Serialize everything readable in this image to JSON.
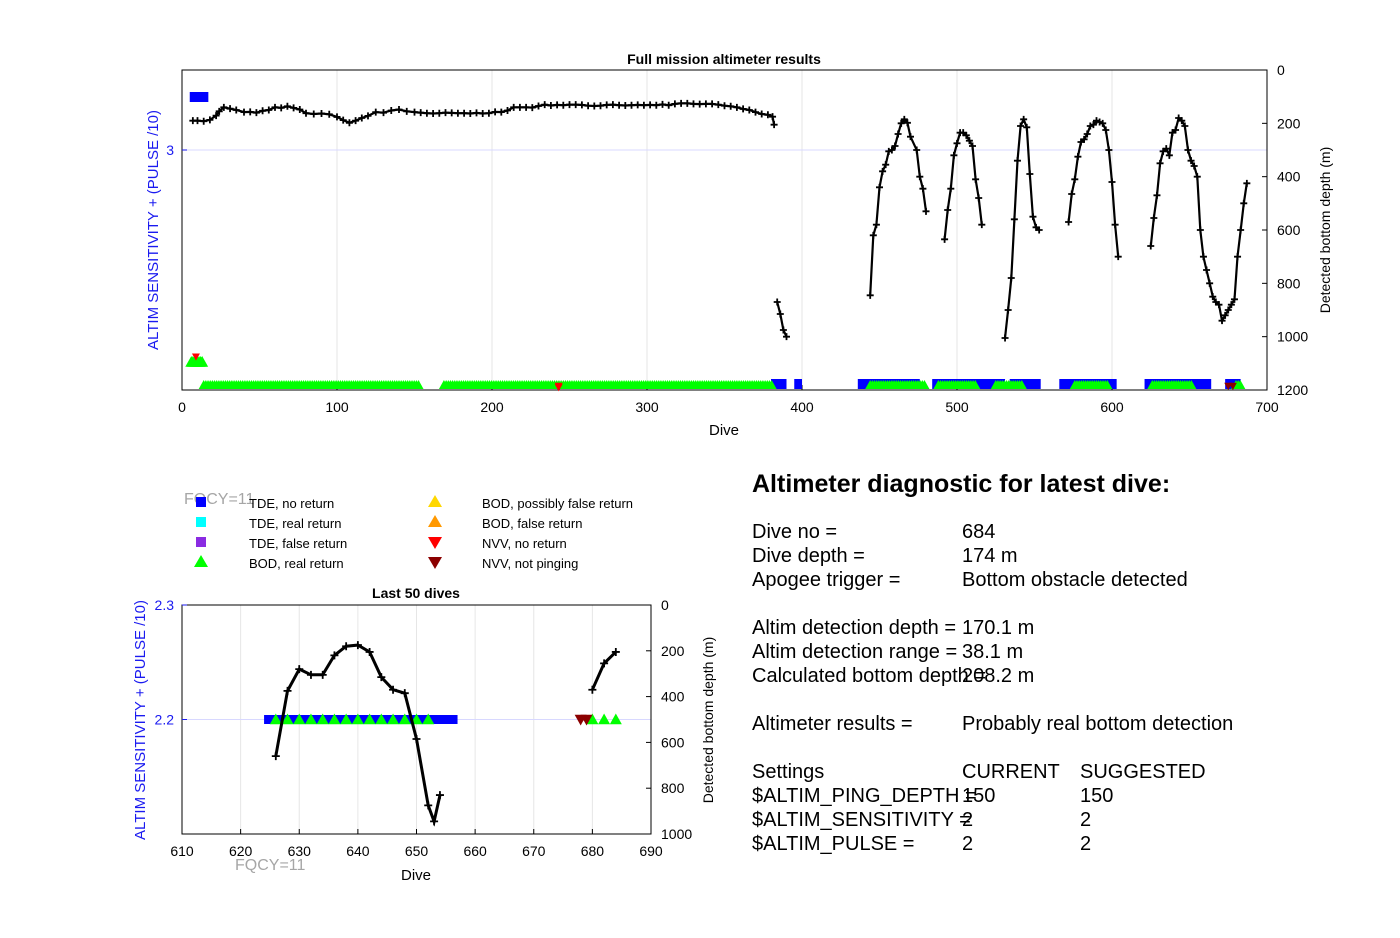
{
  "colors": {
    "left_axis": "#1a1af0",
    "tde_no_return": "#0000ff",
    "tde_real_return": "#00ffff",
    "tde_false_return": "#8a2be2",
    "bod_real_return": "#00ff00",
    "bod_possibly_false": "#ffd700",
    "bod_false": "#ff9900",
    "nvv_no_return": "#ff0000",
    "nvv_not_pinging": "#8b0000",
    "depth_line": "#000000",
    "watermark": "#a6a6a6"
  },
  "chart_data": [
    {
      "id": "full",
      "type": "line",
      "title": "Full mission altimeter results",
      "xlabel": "Dive",
      "ylabel_left": "ALTIM SENSITIVITY + (PULSE /10)",
      "ylabel_right": "Detected bottom depth (m)",
      "xlim": [
        0,
        700
      ],
      "ylim_left": [
        1.8,
        3.4
      ],
      "ylim_right_reversed": [
        0,
        1200
      ],
      "xticks": [
        "0",
        "100",
        "200",
        "300",
        "400",
        "500",
        "600",
        "700"
      ],
      "yticks_left": [
        "3"
      ],
      "yticks_right": [
        "0",
        "200",
        "400",
        "600",
        "800",
        "1000",
        "1200"
      ],
      "grid": true,
      "depth_segments": [
        [
          [
            7,
            190
          ],
          [
            10,
            190
          ],
          [
            14,
            192
          ],
          [
            18,
            187
          ],
          [
            22,
            171
          ],
          [
            24,
            155
          ],
          [
            27,
            140
          ],
          [
            31,
            145
          ],
          [
            35,
            150
          ],
          [
            40,
            158
          ],
          [
            44,
            157
          ],
          [
            48,
            160
          ],
          [
            52,
            153
          ],
          [
            56,
            150
          ],
          [
            60,
            140
          ],
          [
            64,
            142
          ],
          [
            68,
            136
          ],
          [
            72,
            142
          ],
          [
            76,
            148
          ],
          [
            80,
            162
          ],
          [
            85,
            165
          ],
          [
            90,
            163
          ],
          [
            95,
            166
          ],
          [
            100,
            176
          ],
          [
            104,
            188
          ],
          [
            108,
            198
          ],
          [
            112,
            190
          ],
          [
            116,
            180
          ],
          [
            120,
            172
          ],
          [
            125,
            158
          ],
          [
            130,
            160
          ],
          [
            135,
            152
          ],
          [
            140,
            148
          ],
          [
            145,
            155
          ],
          [
            150,
            158
          ],
          [
            154,
            160
          ],
          [
            158,
            162
          ],
          [
            162,
            163
          ],
          [
            166,
            162
          ],
          [
            170,
            160
          ],
          [
            174,
            161
          ],
          [
            178,
            162
          ],
          [
            182,
            162
          ],
          [
            186,
            163
          ],
          [
            190,
            161
          ],
          [
            194,
            163
          ],
          [
            198,
            162
          ],
          [
            202,
            157
          ],
          [
            206,
            158
          ],
          [
            210,
            152
          ],
          [
            214,
            140
          ],
          [
            218,
            140
          ],
          [
            222,
            140
          ],
          [
            226,
            141
          ],
          [
            230,
            135
          ],
          [
            234,
            130
          ],
          [
            238,
            133
          ],
          [
            242,
            131
          ],
          [
            246,
            132
          ],
          [
            250,
            130
          ],
          [
            254,
            130
          ],
          [
            258,
            131
          ],
          [
            262,
            134
          ],
          [
            266,
            135
          ],
          [
            270,
            134
          ],
          [
            274,
            131
          ],
          [
            278,
            130
          ],
          [
            282,
            132
          ],
          [
            286,
            133
          ],
          [
            290,
            132
          ],
          [
            294,
            131
          ],
          [
            298,
            132
          ],
          [
            302,
            131
          ],
          [
            306,
            132
          ],
          [
            310,
            129
          ],
          [
            314,
            132
          ],
          [
            318,
            127
          ],
          [
            322,
            125
          ],
          [
            326,
            125
          ],
          [
            330,
            127
          ],
          [
            334,
            128
          ],
          [
            338,
            127
          ],
          [
            342,
            127
          ],
          [
            346,
            130
          ],
          [
            350,
            134
          ],
          [
            354,
            136
          ],
          [
            358,
            140
          ],
          [
            362,
            146
          ],
          [
            366,
            150
          ],
          [
            370,
            158
          ],
          [
            374,
            165
          ],
          [
            378,
            168
          ],
          [
            381,
            175
          ],
          [
            382,
            205
          ]
        ],
        [
          [
            384,
            870
          ],
          [
            386,
            915
          ],
          [
            388,
            975
          ],
          [
            390,
            1000
          ]
        ],
        [
          [
            444,
            845
          ],
          [
            446,
            620
          ],
          [
            448,
            580
          ],
          [
            450,
            440
          ],
          [
            452,
            380
          ],
          [
            454,
            355
          ],
          [
            456,
            305
          ],
          [
            458,
            300
          ],
          [
            460,
            285
          ],
          [
            462,
            240
          ],
          [
            464,
            200
          ],
          [
            466,
            185
          ],
          [
            468,
            198
          ],
          [
            470,
            250
          ],
          [
            474,
            300
          ],
          [
            476,
            400
          ],
          [
            478,
            445
          ],
          [
            480,
            530
          ]
        ],
        [
          [
            492,
            635
          ],
          [
            494,
            525
          ],
          [
            496,
            445
          ],
          [
            498,
            320
          ],
          [
            500,
            275
          ],
          [
            502,
            235
          ],
          [
            504,
            235
          ],
          [
            506,
            245
          ],
          [
            508,
            265
          ],
          [
            510,
            285
          ],
          [
            512,
            410
          ],
          [
            514,
            480
          ],
          [
            516,
            580
          ]
        ],
        [
          [
            531,
            1005
          ],
          [
            533,
            900
          ],
          [
            535,
            780
          ],
          [
            537,
            560
          ],
          [
            539,
            340
          ],
          [
            541,
            210
          ],
          [
            543,
            185
          ],
          [
            545,
            215
          ],
          [
            547,
            390
          ],
          [
            549,
            550
          ],
          [
            551,
            590
          ],
          [
            553,
            600
          ]
        ],
        [
          [
            572,
            570
          ],
          [
            574,
            465
          ],
          [
            576,
            410
          ],
          [
            578,
            325
          ],
          [
            580,
            270
          ],
          [
            582,
            260
          ],
          [
            584,
            240
          ],
          [
            586,
            210
          ],
          [
            588,
            205
          ],
          [
            590,
            190
          ],
          [
            592,
            195
          ],
          [
            594,
            200
          ],
          [
            596,
            225
          ],
          [
            598,
            300
          ],
          [
            600,
            420
          ],
          [
            602,
            580
          ],
          [
            604,
            700
          ]
        ],
        [
          [
            625,
            660
          ],
          [
            627,
            555
          ],
          [
            629,
            470
          ],
          [
            631,
            350
          ],
          [
            633,
            305
          ],
          [
            635,
            295
          ],
          [
            637,
            320
          ],
          [
            639,
            235
          ],
          [
            641,
            225
          ],
          [
            643,
            180
          ],
          [
            645,
            190
          ],
          [
            647,
            210
          ],
          [
            649,
            300
          ],
          [
            651,
            340
          ],
          [
            653,
            360
          ],
          [
            655,
            400
          ],
          [
            657,
            600
          ],
          [
            659,
            700
          ],
          [
            661,
            750
          ],
          [
            663,
            800
          ],
          [
            665,
            850
          ],
          [
            667,
            870
          ],
          [
            669,
            880
          ],
          [
            671,
            940
          ],
          [
            673,
            920
          ],
          [
            675,
            900
          ],
          [
            677,
            880
          ],
          [
            679,
            860
          ],
          [
            681,
            700
          ],
          [
            683,
            600
          ],
          [
            685,
            500
          ],
          [
            687,
            425
          ]
        ]
      ],
      "tde_no_return_bars": [
        [
          5,
          17
        ],
        [
          380,
          390
        ],
        [
          395,
          400
        ],
        [
          436,
          476
        ],
        [
          484,
          531
        ],
        [
          534,
          554
        ],
        [
          566,
          603
        ],
        [
          621,
          664
        ],
        [
          673,
          683
        ]
      ],
      "bod_real_return_bars": [
        [
          14,
          153
        ],
        [
          169,
          381
        ],
        [
          444,
          480
        ],
        [
          488,
          513
        ],
        [
          525,
          543
        ],
        [
          576,
          598
        ],
        [
          626,
          652
        ],
        [
          680,
          683
        ]
      ],
      "bod_real_return_early": [
        [
          6,
          13
        ]
      ],
      "nvv_no_return_markers": [
        [
          9,
          1090
        ],
        [
          243,
          1205
        ],
        [
          243,
          1200
        ]
      ],
      "nvv_not_pinging_markers": [
        [
          675,
          1200
        ],
        [
          678,
          1200
        ]
      ]
    },
    {
      "id": "last50",
      "type": "line",
      "title": "Last 50 dives",
      "xlabel": "Dive",
      "ylabel_left": "ALTIM SENSITIVITY + (PULSE /10)",
      "ylabel_right": "Detected bottom depth (m)",
      "xlim": [
        610,
        690
      ],
      "ylim_left": [
        2.1,
        2.3
      ],
      "ylim_right_reversed": [
        0,
        1000
      ],
      "xticks": [
        "610",
        "620",
        "630",
        "640",
        "650",
        "660",
        "670",
        "680",
        "690"
      ],
      "yticks_left": [
        "2.3",
        "2.2"
      ],
      "yticks_right": [
        "0",
        "200",
        "400",
        "600",
        "800",
        "1000"
      ],
      "grid": true,
      "depth_segments": [
        [
          [
            626,
            660
          ],
          [
            628,
            375
          ],
          [
            630,
            280
          ],
          [
            632,
            305
          ],
          [
            634,
            305
          ],
          [
            636,
            220
          ],
          [
            638,
            180
          ],
          [
            640,
            175
          ],
          [
            642,
            205
          ],
          [
            644,
            315
          ],
          [
            646,
            370
          ],
          [
            648,
            385
          ],
          [
            650,
            585
          ],
          [
            652,
            875
          ],
          [
            653,
            945
          ],
          [
            654,
            830
          ]
        ],
        [
          [
            680,
            370
          ],
          [
            682,
            255
          ],
          [
            684,
            205
          ]
        ]
      ],
      "tde_no_return_y": 2.2,
      "tde_no_return_range": [
        624,
        657
      ],
      "bod_real_return_x": [
        626,
        628,
        630,
        632,
        634,
        636,
        638,
        640,
        642,
        644,
        646,
        648,
        650,
        652
      ],
      "nvv_not_pinging_x": [
        678,
        679
      ],
      "bod_extra_x": [
        680,
        682,
        684
      ]
    }
  ],
  "legend": {
    "items_left": [
      "TDE, no return",
      "TDE, real return",
      "TDE, false return",
      "BOD, real return"
    ],
    "items_right": [
      "BOD, possibly false return",
      "BOD, false return",
      "NVV, no return",
      "NVV, not pinging"
    ]
  },
  "watermark": "FQCY=11",
  "diagnostic": {
    "title": "Altimeter diagnostic for latest dive:",
    "dive_no_label": "Dive no =",
    "dive_no_value": "684",
    "dive_depth_label": "Dive depth =",
    "dive_depth_value": "174 m",
    "apogee_label": "Apogee trigger =",
    "apogee_value": "Bottom obstacle detected",
    "altim_depth_label": "Altim detection depth =",
    "altim_depth_value": "170.1 m",
    "altim_range_label": "Altim detection range =",
    "altim_range_value": "38.1 m",
    "calc_depth_label": "Calculated bottom depth =",
    "calc_depth_value": "208.2 m",
    "results_label": "Altimeter results =",
    "results_value": "Probably real bottom detection",
    "settings_label": "Settings",
    "current_label": "CURRENT",
    "suggested_label": "SUGGESTED",
    "ping_depth_label": "$ALTIM_PING_DEPTH =",
    "ping_depth_current": "150",
    "ping_depth_suggested": "150",
    "sensitivity_label": "$ALTIM_SENSITIVITY =",
    "sensitivity_current": "2",
    "sensitivity_suggested": "2",
    "pulse_label": "$ALTIM_PULSE =",
    "pulse_current": "2",
    "pulse_suggested": "2"
  }
}
